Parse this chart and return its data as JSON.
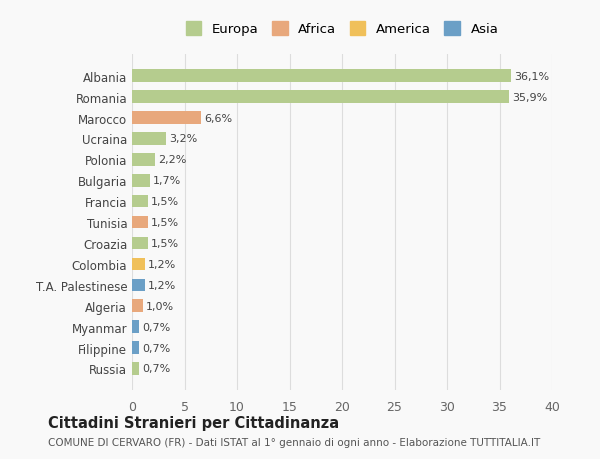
{
  "countries": [
    "Russia",
    "Filippine",
    "Myanmar",
    "Algeria",
    "T.A. Palestinese",
    "Colombia",
    "Croazia",
    "Tunisia",
    "Francia",
    "Bulgaria",
    "Polonia",
    "Ucraina",
    "Marocco",
    "Romania",
    "Albania"
  ],
  "values": [
    0.7,
    0.7,
    0.7,
    1.0,
    1.2,
    1.2,
    1.5,
    1.5,
    1.5,
    1.7,
    2.2,
    3.2,
    6.6,
    35.9,
    36.1
  ],
  "labels": [
    "0,7%",
    "0,7%",
    "0,7%",
    "1,0%",
    "1,2%",
    "1,2%",
    "1,5%",
    "1,5%",
    "1,5%",
    "1,7%",
    "2,2%",
    "3,2%",
    "6,6%",
    "35,9%",
    "36,1%"
  ],
  "continents": [
    "Europa",
    "Asia",
    "Asia",
    "Africa",
    "Asia",
    "America",
    "Europa",
    "Africa",
    "Europa",
    "Europa",
    "Europa",
    "Europa",
    "Africa",
    "Europa",
    "Europa"
  ],
  "continent_colors": {
    "Europa": "#b5cc8e",
    "Africa": "#e8a87c",
    "America": "#f0c05a",
    "Asia": "#6b9fc6"
  },
  "legend_order": [
    "Europa",
    "Africa",
    "America",
    "Asia"
  ],
  "legend_colors": [
    "#b5cc8e",
    "#e8a87c",
    "#f0c05a",
    "#6b9fc6"
  ],
  "title": "Cittadini Stranieri per Cittadinanza",
  "subtitle": "COMUNE DI CERVARO (FR) - Dati ISTAT al 1° gennaio di ogni anno - Elaborazione TUTTITALIA.IT",
  "xlim": [
    0,
    40
  ],
  "xticks": [
    0,
    5,
    10,
    15,
    20,
    25,
    30,
    35,
    40
  ],
  "background_color": "#f9f9f9",
  "grid_color": "#dddddd",
  "bar_height": 0.6
}
